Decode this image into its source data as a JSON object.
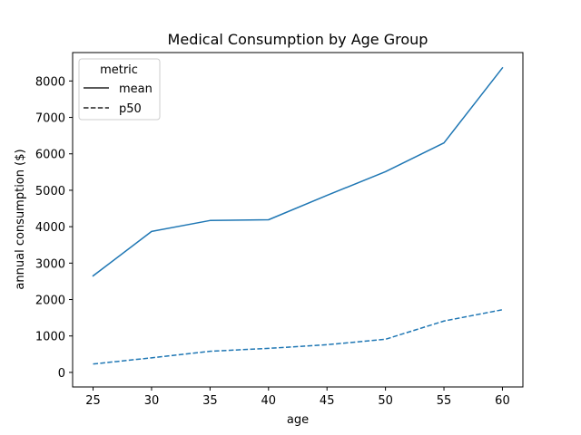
{
  "chart_data": {
    "type": "line",
    "title": "Medical Consumption by Age Group",
    "xlabel": "age",
    "ylabel": "annual consumption ($)",
    "x": [
      25,
      30,
      35,
      40,
      45,
      50,
      55,
      60
    ],
    "xticks": [
      25,
      30,
      35,
      40,
      45,
      50,
      55,
      60
    ],
    "yticks": [
      0,
      1000,
      2000,
      3000,
      4000,
      5000,
      6000,
      7000,
      8000
    ],
    "xlim": [
      23.25,
      61.75
    ],
    "ylim": [
      -400,
      8780
    ],
    "grid": false,
    "legend": {
      "title": "metric",
      "placement": "upper-left"
    },
    "series": [
      {
        "name": "mean",
        "style": "solid",
        "color": "#1f77b4",
        "values": [
          2650,
          3870,
          4170,
          4190,
          4860,
          5510,
          6300,
          8360
        ]
      },
      {
        "name": "p50",
        "style": "dashed",
        "color": "#1f77b4",
        "values": [
          230,
          400,
          580,
          660,
          760,
          910,
          1410,
          1720
        ]
      }
    ]
  }
}
